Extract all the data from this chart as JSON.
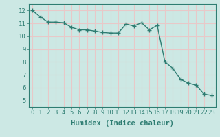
{
  "x": [
    0,
    1,
    2,
    3,
    4,
    5,
    6,
    7,
    8,
    9,
    10,
    11,
    12,
    13,
    14,
    15,
    16,
    17,
    18,
    19,
    20,
    21,
    22,
    23
  ],
  "y": [
    12.0,
    11.5,
    11.1,
    11.1,
    11.05,
    10.7,
    10.5,
    10.5,
    10.4,
    10.3,
    10.25,
    10.25,
    10.95,
    10.8,
    11.05,
    10.5,
    10.85,
    8.0,
    7.5,
    6.65,
    6.35,
    6.2,
    5.5,
    5.4
  ],
  "line_color": "#2e7d72",
  "marker": "+",
  "marker_size": 4,
  "bg_color": "#cce8e4",
  "grid_color": "#e8c8c8",
  "xlabel": "Humidex (Indice chaleur)",
  "xlim": [
    -0.5,
    23.5
  ],
  "ylim": [
    4.5,
    12.5
  ],
  "yticks": [
    5,
    6,
    7,
    8,
    9,
    10,
    11,
    12
  ],
  "xticks": [
    0,
    1,
    2,
    3,
    4,
    5,
    6,
    7,
    8,
    9,
    10,
    11,
    12,
    13,
    14,
    15,
    16,
    17,
    18,
    19,
    20,
    21,
    22,
    23
  ],
  "tick_color": "#2e7d72",
  "label_color": "#2e7d72",
  "font_size": 6.5,
  "xlabel_fontsize": 7.5,
  "linewidth": 1.0
}
